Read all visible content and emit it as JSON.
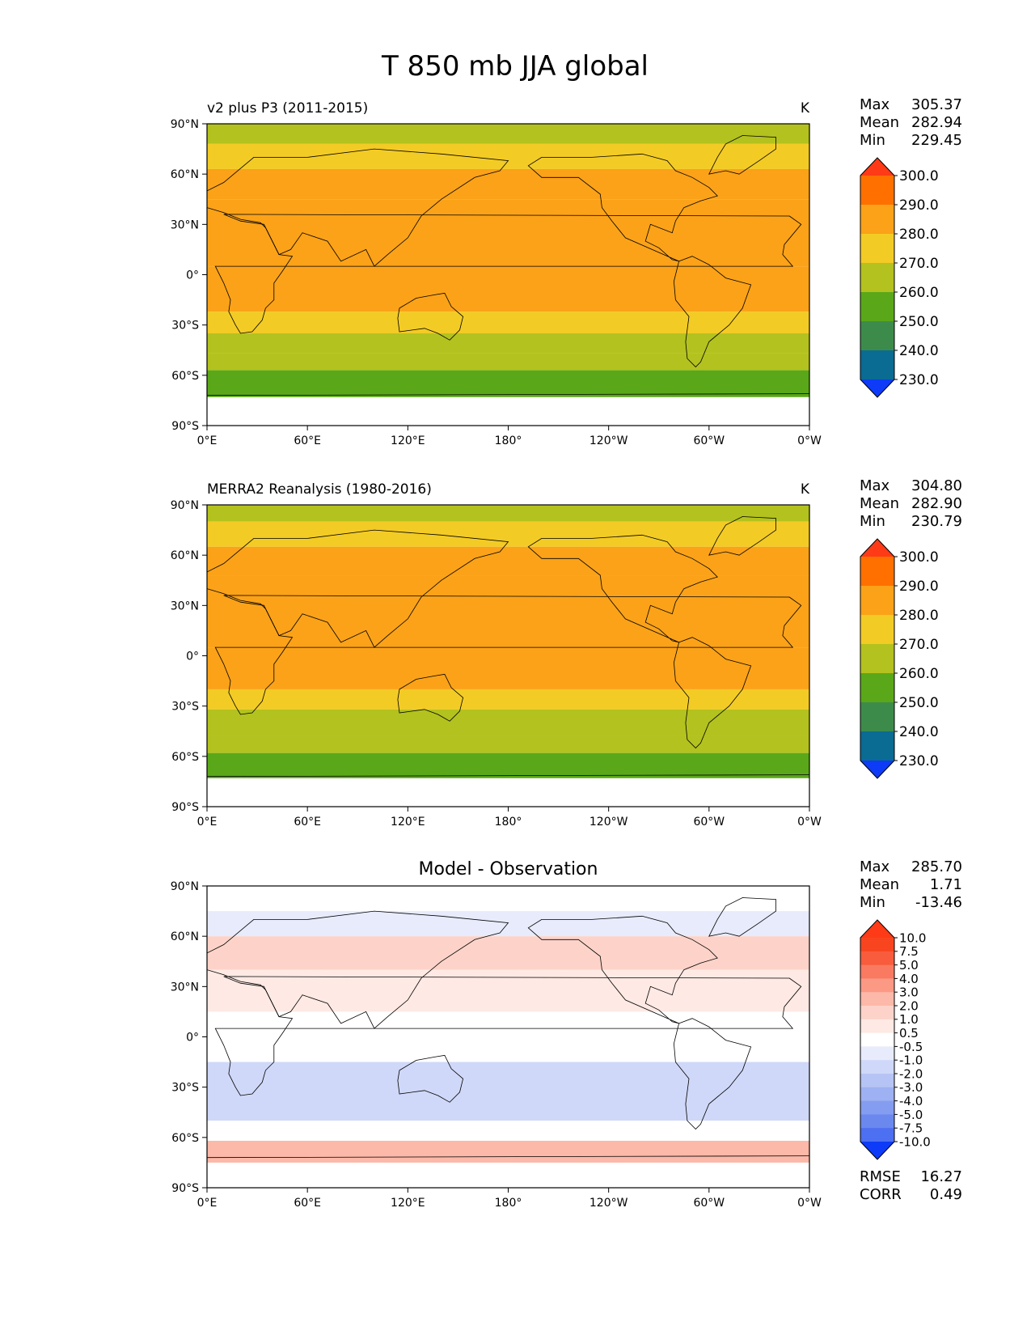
{
  "figure_title": "T 850 mb JJA global",
  "chart_data": [
    {
      "type": "heatmap",
      "subtitle": "v2 plus P3 (2011-2015)",
      "units": "K",
      "x_ticks": [
        "0°E",
        "60°E",
        "120°E",
        "180°",
        "120°W",
        "60°W",
        "0°W"
      ],
      "y_ticks": [
        "90°N",
        "60°N",
        "30°N",
        "0°",
        "30°S",
        "60°S",
        "90°S"
      ],
      "xlim": [
        0,
        360
      ],
      "ylim": [
        -90,
        90
      ],
      "stats": [
        {
          "label": "Max",
          "value": "305.37"
        },
        {
          "label": "Mean",
          "value": "282.94"
        },
        {
          "label": "Min",
          "value": "229.45"
        }
      ],
      "colorbar": {
        "levels": [
          "300.0",
          "290.0",
          "280.0",
          "270.0",
          "260.0",
          "250.0",
          "240.0",
          "230.0"
        ],
        "colors": [
          "#ff3a16",
          "#ff7000",
          "#fba218",
          "#f3cb25",
          "#b3c21e",
          "#5aa819",
          "#3d8b4b",
          "#0a6b93",
          "#0d3bf7"
        ]
      },
      "bands": [
        {
          "lat": [
            90,
            78
          ],
          "value": 265
        },
        {
          "lat": [
            78,
            63
          ],
          "value": 275
        },
        {
          "lat": [
            63,
            45
          ],
          "value": 282
        },
        {
          "lat": [
            45,
            5
          ],
          "value": 286
        },
        {
          "lat": [
            5,
            -22
          ],
          "value": 282
        },
        {
          "lat": [
            -22,
            -35
          ],
          "value": 275
        },
        {
          "lat": [
            -35,
            -47
          ],
          "value": 268
        },
        {
          "lat": [
            -47,
            -57
          ],
          "value": 262
        },
        {
          "lat": [
            -57,
            -73
          ],
          "value": 255
        }
      ]
    },
    {
      "type": "heatmap",
      "subtitle": "MERRA2 Reanalysis (1980-2016)",
      "units": "K",
      "x_ticks": [
        "0°E",
        "60°E",
        "120°E",
        "180°",
        "120°W",
        "60°W",
        "0°W"
      ],
      "y_ticks": [
        "90°N",
        "60°N",
        "30°N",
        "0°",
        "30°S",
        "60°S",
        "90°S"
      ],
      "xlim": [
        0,
        360
      ],
      "ylim": [
        -90,
        90
      ],
      "stats": [
        {
          "label": "Max",
          "value": "304.80"
        },
        {
          "label": "Mean",
          "value": "282.90"
        },
        {
          "label": "Min",
          "value": "230.79"
        }
      ],
      "colorbar": {
        "levels": [
          "300.0",
          "290.0",
          "280.0",
          "270.0",
          "260.0",
          "250.0",
          "240.0",
          "230.0"
        ],
        "colors": [
          "#ff3a16",
          "#ff7000",
          "#fba218",
          "#f3cb25",
          "#b3c21e",
          "#5aa819",
          "#3d8b4b",
          "#0a6b93",
          "#0d3bf7"
        ]
      },
      "bands": [
        {
          "lat": [
            90,
            80
          ],
          "value": 265
        },
        {
          "lat": [
            80,
            65
          ],
          "value": 275
        },
        {
          "lat": [
            65,
            48
          ],
          "value": 282
        },
        {
          "lat": [
            48,
            5
          ],
          "value": 286
        },
        {
          "lat": [
            5,
            -20
          ],
          "value": 282
        },
        {
          "lat": [
            -20,
            -32
          ],
          "value": 275
        },
        {
          "lat": [
            -32,
            -48
          ],
          "value": 268
        },
        {
          "lat": [
            -48,
            -58
          ],
          "value": 262
        },
        {
          "lat": [
            -58,
            -73
          ],
          "value": 255
        }
      ]
    },
    {
      "type": "heatmap",
      "title": "Model - Observation",
      "units": "",
      "x_ticks": [
        "0°E",
        "60°E",
        "120°E",
        "180°",
        "120°W",
        "60°W",
        "0°W"
      ],
      "y_ticks": [
        "90°N",
        "60°N",
        "30°N",
        "0°",
        "30°S",
        "60°S",
        "90°S"
      ],
      "xlim": [
        0,
        360
      ],
      "ylim": [
        -90,
        90
      ],
      "stats": [
        {
          "label": "Max",
          "value": "285.70"
        },
        {
          "label": "Mean",
          "value": "1.71"
        },
        {
          "label": "Min",
          "value": "-13.46"
        }
      ],
      "colorbar": {
        "levels": [
          "10.0",
          "7.5",
          "5.0",
          "4.0",
          "3.0",
          "2.0",
          "1.0",
          "0.5",
          "-0.5",
          "-1.0",
          "-2.0",
          "-3.0",
          "-4.0",
          "-5.0",
          "-7.5",
          "-10.0"
        ],
        "colors": [
          "#ff3a16",
          "#f9451f",
          "#f85c3c",
          "#f97a61",
          "#fb9985",
          "#fcb8a8",
          "#fdd3c9",
          "#fee9e4",
          "#ffffff",
          "#e7ebfb",
          "#cfd8f8",
          "#b6c4f5",
          "#9eb1f2",
          "#859df0",
          "#6b88ee",
          "#4d6ff2",
          "#0d3bf7"
        ]
      },
      "rmse": {
        "label": "RMSE",
        "value": "16.27"
      },
      "corr": {
        "label": "CORR",
        "value": "0.49"
      },
      "bands": [
        {
          "lat": [
            90,
            75
          ],
          "value": 0
        },
        {
          "lat": [
            75,
            60
          ],
          "value": -1
        },
        {
          "lat": [
            60,
            40
          ],
          "value": 1.5
        },
        {
          "lat": [
            40,
            15
          ],
          "value": 0.8
        },
        {
          "lat": [
            15,
            -15
          ],
          "value": 0
        },
        {
          "lat": [
            -15,
            -50
          ],
          "value": -1.5
        },
        {
          "lat": [
            -50,
            -62
          ],
          "value": 0
        },
        {
          "lat": [
            -62,
            -75
          ],
          "value": 2.5
        }
      ]
    }
  ]
}
